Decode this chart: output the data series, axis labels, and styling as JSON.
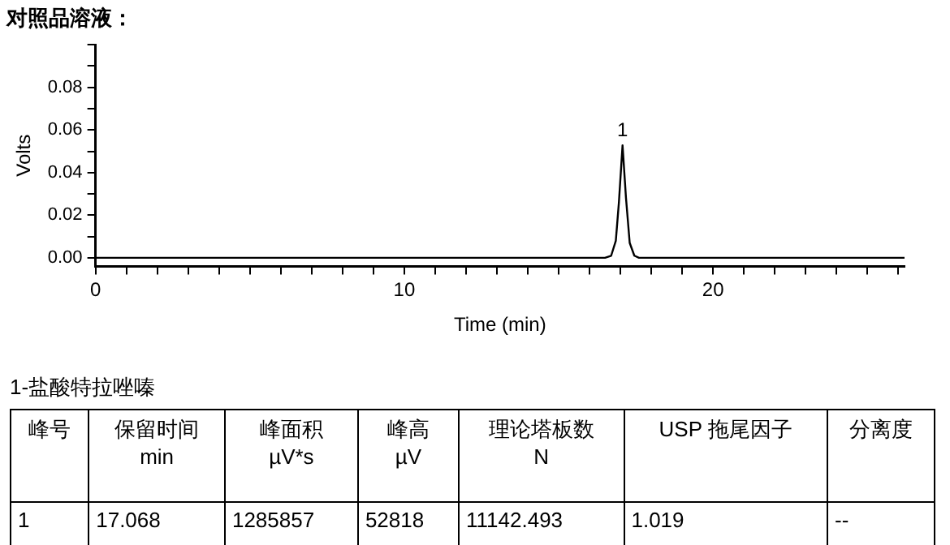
{
  "chart_data": [
    {
      "type": "line",
      "title": "对照品溶液：",
      "xlabel": "Time (min)",
      "ylabel": "Volts",
      "x": [
        0,
        16.5,
        16.7,
        16.85,
        16.95,
        17.068,
        17.18,
        17.3,
        17.45,
        17.6,
        26.2
      ],
      "series": [
        {
          "color": "#000000",
          "values": [
            0,
            0,
            0.001,
            0.008,
            0.026,
            0.0528,
            0.028,
            0.007,
            0.001,
            0,
            0
          ]
        }
      ],
      "xlim": [
        0,
        26.2
      ],
      "xticks": [
        0,
        {
          "value": 1,
          "label": null
        },
        {
          "value": 2,
          "label": null
        },
        {
          "value": 3,
          "label": null
        },
        {
          "value": 4,
          "label": null
        },
        {
          "value": 5,
          "label": null
        },
        {
          "value": 6,
          "label": null
        },
        {
          "value": 7,
          "label": null
        },
        {
          "value": 8,
          "label": null
        },
        {
          "value": 9,
          "label": null
        },
        10,
        {
          "value": 11,
          "label": null
        },
        {
          "value": 12,
          "label": null
        },
        {
          "value": 13,
          "label": null
        },
        {
          "value": 14,
          "label": null
        },
        {
          "value": 15,
          "label": null
        },
        {
          "value": 16,
          "label": null
        },
        {
          "value": 17,
          "label": null
        },
        {
          "value": 18,
          "label": null
        },
        {
          "value": 19,
          "label": null
        },
        20,
        {
          "value": 21,
          "label": null
        },
        {
          "value": 22,
          "label": null
        },
        {
          "value": 23,
          "label": null
        },
        {
          "value": 24,
          "label": null
        },
        {
          "value": 25,
          "label": null
        },
        {
          "value": 26,
          "label": null
        }
      ],
      "ylim": [
        -0.004,
        0.1
      ],
      "yticks": [
        {
          "value": 0,
          "label": "0.00"
        },
        {
          "value": 0.01,
          "label": null
        },
        {
          "value": 0.02,
          "label": "0.02"
        },
        {
          "value": 0.03,
          "label": null
        },
        {
          "value": 0.04,
          "label": "0.04"
        },
        {
          "value": 0.05,
          "label": null
        },
        {
          "value": 0.06,
          "label": "0.06"
        },
        {
          "value": 0.07,
          "label": null
        },
        {
          "value": 0.08,
          "label": "0.08"
        },
        {
          "value": 0.09,
          "label": null
        },
        {
          "value": 0.1,
          "label": null
        }
      ],
      "annotations": [
        {
          "text": "1",
          "x": 17.068,
          "y": 0.0528
        }
      ],
      "grid": false,
      "legend": false,
      "marker": "none",
      "line_style": "solid"
    },
    {
      "type": "other",
      "title": "1-盐酸特拉唑嗪",
      "annotations": [
        "峰号",
        "保留时间\nmin",
        "峰面积\nµV*s",
        "峰高\nµV",
        "理论塔板数\nN",
        "USP 拖尾因子",
        "分离度",
        "1",
        "17.068",
        "1285857",
        "52818",
        "11142.493",
        "1.019",
        "--"
      ]
    }
  ]
}
